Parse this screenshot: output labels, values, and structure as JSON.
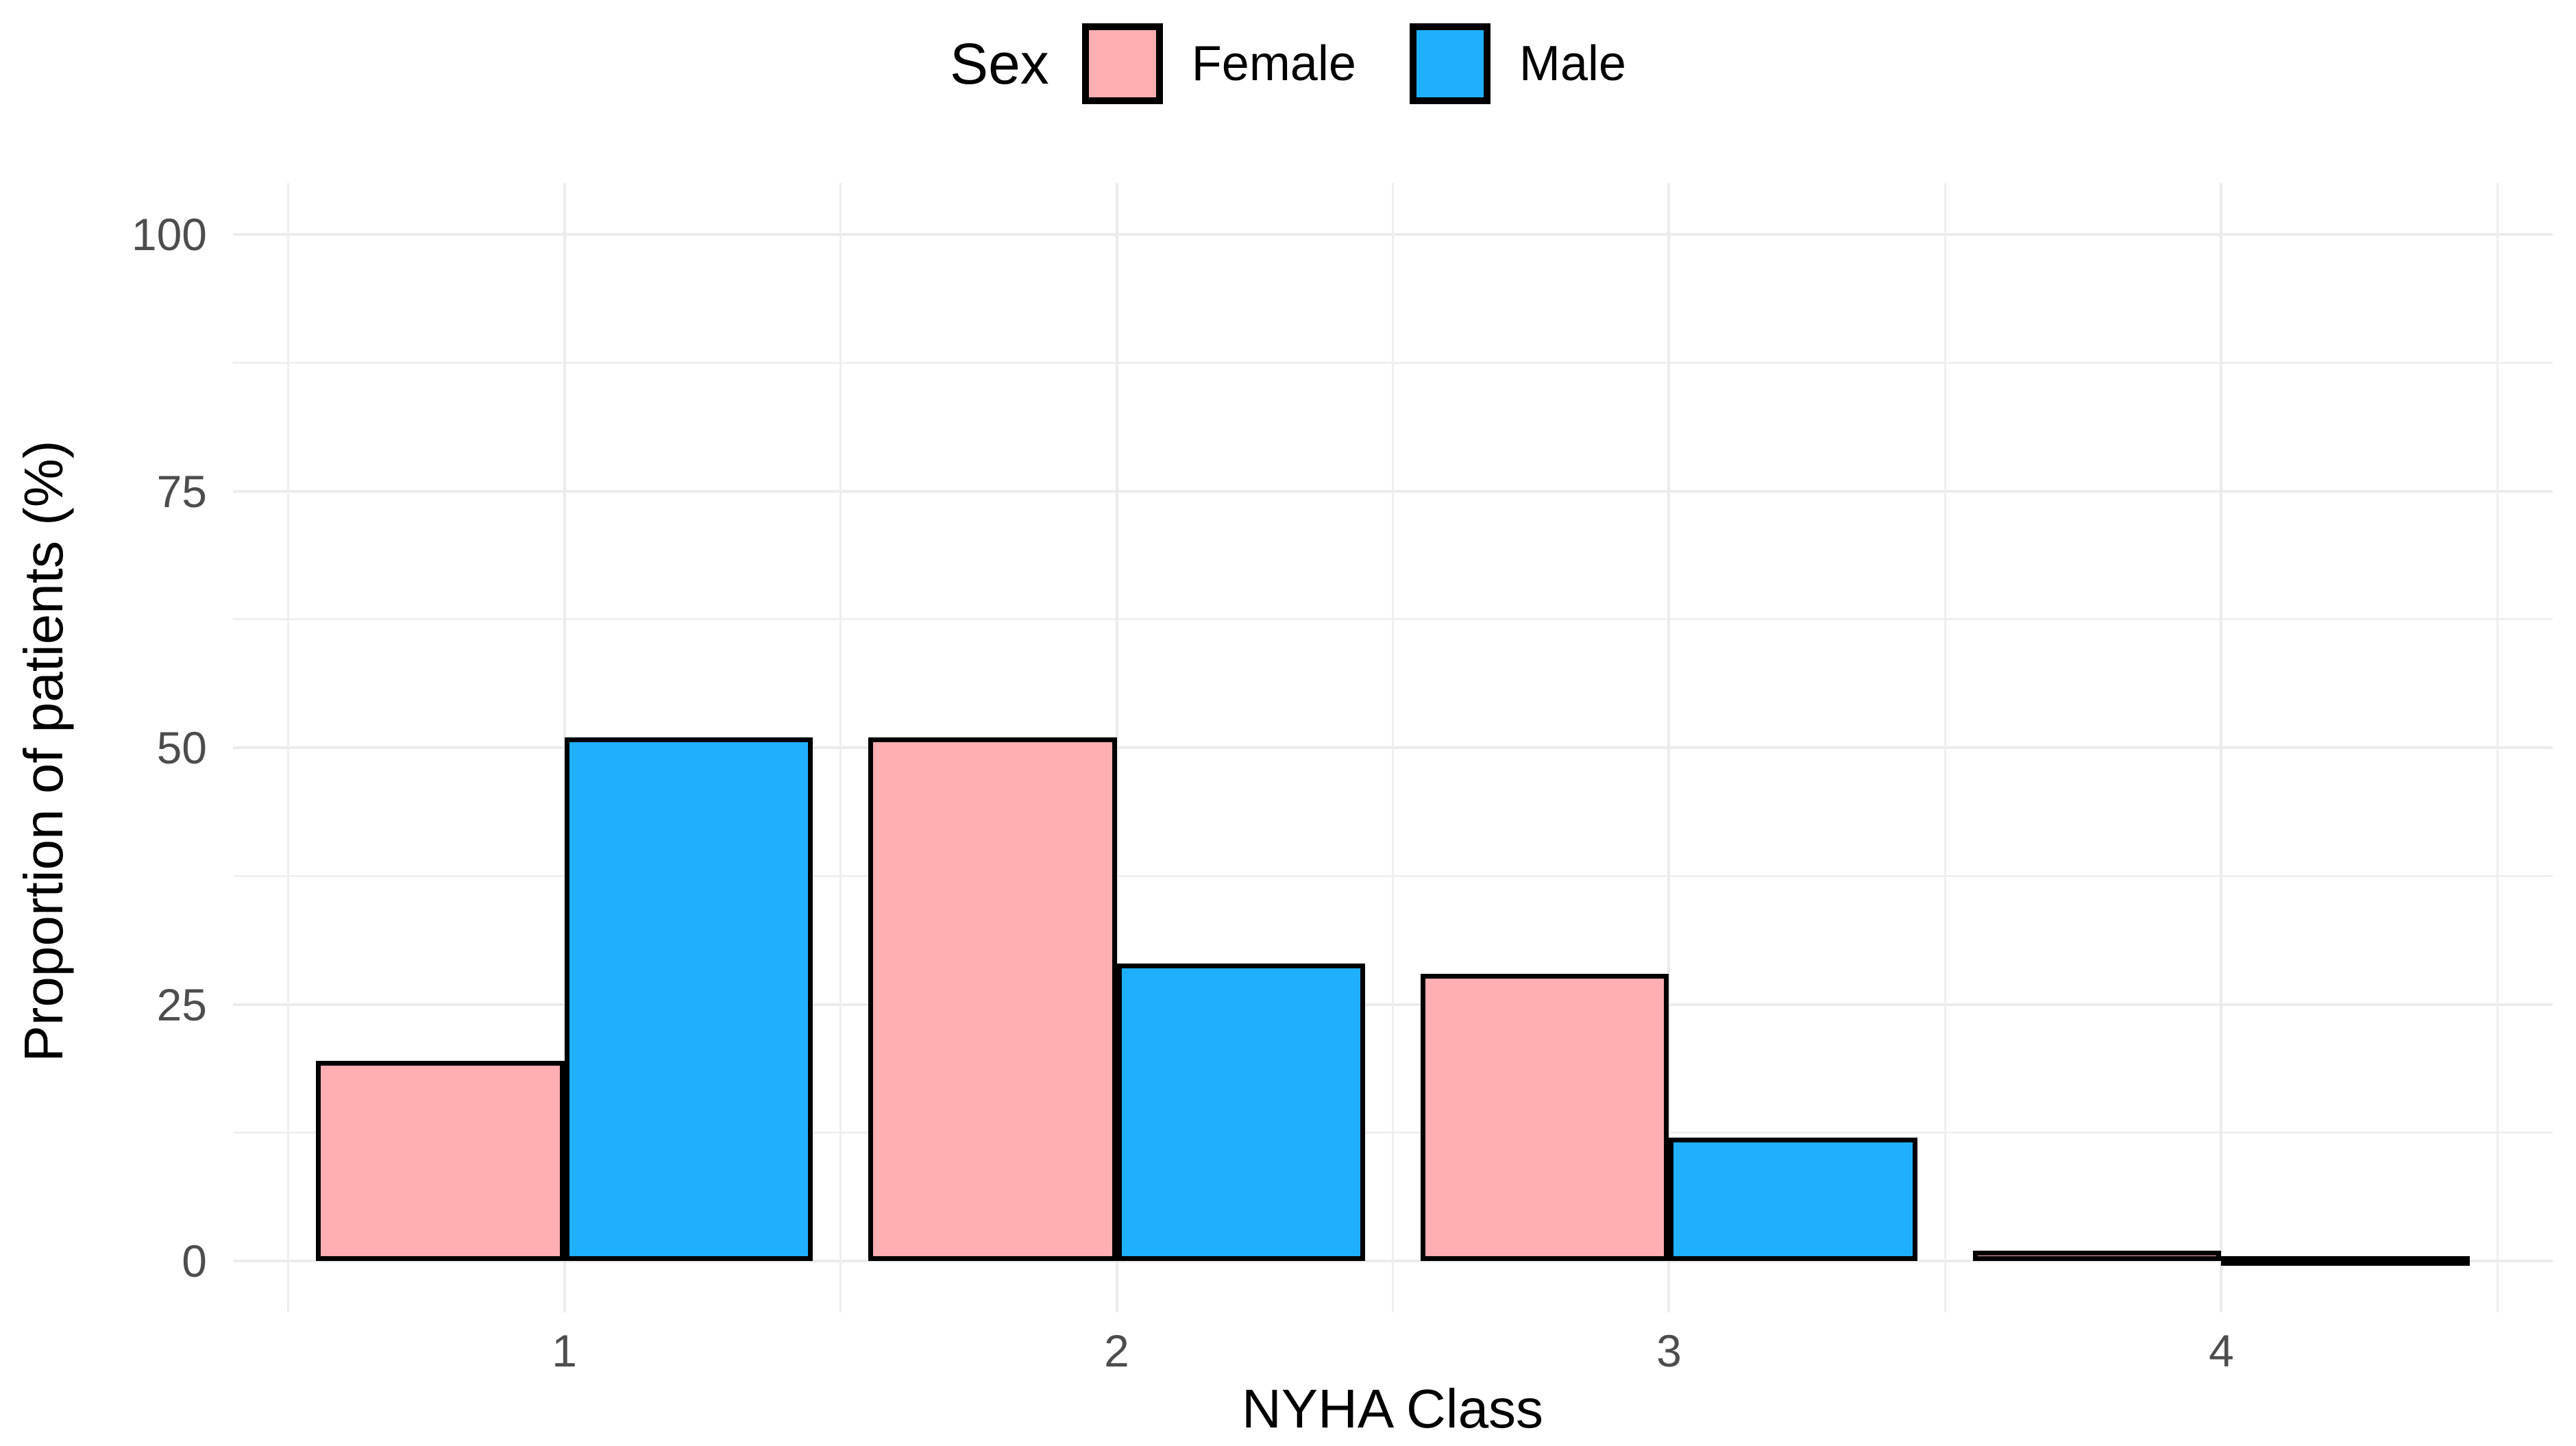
{
  "chart_data": {
    "type": "bar",
    "title": "",
    "legend_title": "Sex",
    "legend_position": "top",
    "categories": [
      "1",
      "2",
      "3",
      "4"
    ],
    "series": [
      {
        "name": "Female",
        "color": "#FFAEB2",
        "values": [
          19.5,
          51,
          28,
          1
        ]
      },
      {
        "name": "Male",
        "color": "#1FB0FC",
        "values": [
          51,
          29,
          12,
          0.5
        ]
      }
    ],
    "xlabel": "NYHA Class",
    "ylabel": "Proportion of patients (%)",
    "ylim": [
      0,
      100
    ],
    "yticks": [
      0,
      25,
      50,
      75,
      100
    ],
    "yticks_minor": [
      12.5,
      37.5,
      62.5,
      87.5
    ],
    "bar_border_color": "#000000",
    "grid": "on",
    "gridline_color": "#ebebeb",
    "tick_label_color": "#4d4d4d",
    "axis_title_color": "#000000",
    "background": "#ffffff"
  }
}
